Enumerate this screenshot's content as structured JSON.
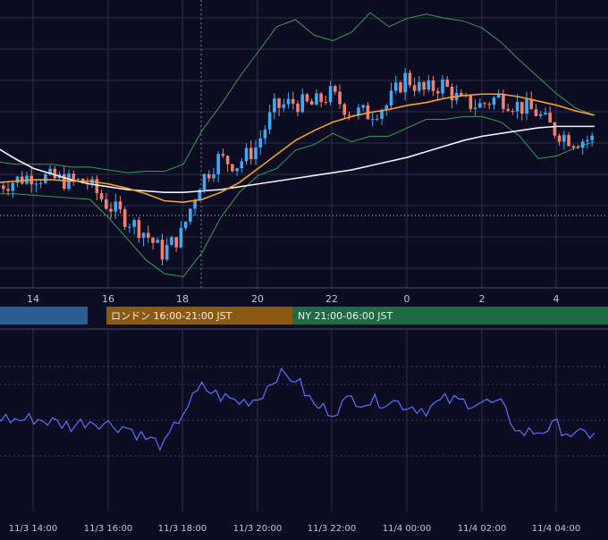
{
  "theme": {
    "background": "#0c0c22",
    "grid": "#2c3044",
    "candle_up": "#3fa9f5",
    "candle_down": "#f0806f",
    "ma_short": "#f5a030",
    "ma_long": "#f2f2f2",
    "bollinger": "#3d9b58",
    "oscillator": "#5f70ff",
    "axis_text": "#c8c8c8"
  },
  "main_axis": {
    "tick_labels": [
      "14",
      "16",
      "18",
      "20",
      "22",
      "0",
      "2",
      "4"
    ]
  },
  "sessions": [
    {
      "label": "",
      "color": "#2c5c92"
    },
    {
      "label": "ロンドン 16:00-21:00 JST",
      "color": "#8a5a14"
    },
    {
      "label": "NY 21:00-06:00 JST",
      "color": "#1f6b44"
    }
  ],
  "bottom_axis": {
    "tick_labels": [
      "11/3 14:00",
      "11/3 16:00",
      "11/3 18:00",
      "11/3 20:00",
      "11/3 22:00",
      "11/4 00:00",
      "11/4 02:00",
      "11/4 04:00"
    ]
  },
  "chart_data": [
    {
      "type": "line",
      "name": "price",
      "x": [
        "13:00",
        "13:30",
        "14:00",
        "14:30",
        "15:00",
        "15:30",
        "16:00",
        "16:30",
        "17:00",
        "17:30",
        "18:00",
        "18:30",
        "19:00",
        "19:30",
        "20:00",
        "20:30",
        "21:00",
        "21:30",
        "22:00",
        "22:30",
        "23:00",
        "23:30",
        "0:00",
        "0:30",
        "1:00",
        "1:30",
        "2:00",
        "2:30",
        "3:00",
        "3:30",
        "4:00",
        "4:30",
        "5:00"
      ],
      "close": [
        92,
        96,
        100,
        98,
        96,
        95,
        80,
        70,
        60,
        45,
        58,
        95,
        112,
        108,
        120,
        148,
        152,
        150,
        158,
        146,
        144,
        150,
        170,
        160,
        165,
        152,
        150,
        156,
        150,
        145,
        132,
        125,
        126
      ],
      "ma_short": [
        95,
        96,
        97,
        97,
        96,
        96,
        94,
        91,
        87,
        82,
        81,
        83,
        88,
        95,
        105,
        115,
        125,
        132,
        138,
        142,
        145,
        147,
        150,
        152,
        155,
        157,
        158,
        158,
        156,
        153,
        150,
        146,
        143
      ],
      "ma_long": [
        120,
        112,
        105,
        101,
        97,
        94,
        92,
        90,
        89,
        88,
        88,
        89,
        90,
        92,
        94,
        96,
        98,
        100,
        102,
        104,
        107,
        110,
        113,
        117,
        121,
        125,
        128,
        130,
        132,
        134,
        135,
        135,
        135
      ],
      "bb_upper": [
        110,
        108,
        108,
        108,
        106,
        106,
        104,
        102,
        103,
        103,
        108,
        132,
        150,
        170,
        188,
        206,
        211,
        200,
        196,
        202,
        216,
        206,
        212,
        215,
        212,
        210,
        205,
        195,
        182,
        170,
        158,
        148,
        143
      ],
      "bb_lower": [
        87,
        87,
        86,
        85,
        84,
        83,
        70,
        55,
        40,
        30,
        28,
        45,
        70,
        88,
        100,
        105,
        118,
        122,
        130,
        124,
        128,
        128,
        134,
        140,
        140,
        142,
        142,
        138,
        128,
        112,
        114,
        120,
        124
      ],
      "ylim": [
        20,
        225
      ]
    },
    {
      "type": "line",
      "name": "oscillator",
      "x": [
        "13:00",
        "13:30",
        "14:00",
        "14:30",
        "15:00",
        "15:30",
        "16:00",
        "16:30",
        "17:00",
        "17:30",
        "18:00",
        "18:30",
        "19:00",
        "19:30",
        "20:00",
        "20:30",
        "21:00",
        "21:30",
        "22:00",
        "22:30",
        "23:00",
        "23:30",
        "0:00",
        "0:30",
        "1:00",
        "1:30",
        "2:00",
        "2:30",
        "3:00",
        "3:30",
        "4:00",
        "4:30",
        "5:00"
      ],
      "values": [
        52,
        50,
        51,
        49,
        47,
        50,
        48,
        46,
        40,
        36,
        55,
        68,
        63,
        60,
        62,
        75,
        73,
        58,
        55,
        62,
        60,
        61,
        58,
        56,
        61,
        60,
        60,
        58,
        43,
        44,
        47,
        41,
        43
      ],
      "ylim": [
        0,
        100
      ]
    }
  ]
}
